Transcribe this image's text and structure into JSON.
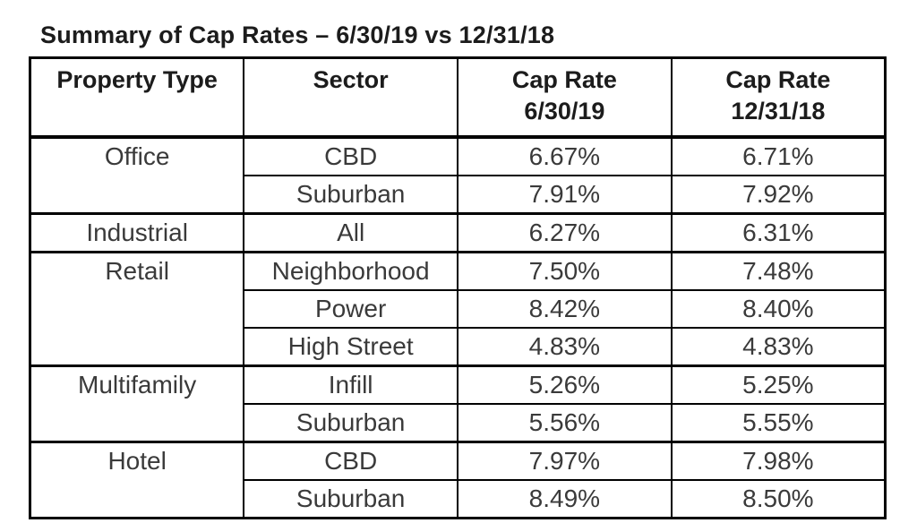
{
  "title": "Summary of Cap Rates – 6/30/19 vs 12/31/18",
  "table": {
    "headers": [
      {
        "line1": "Property Type",
        "line2": ""
      },
      {
        "line1": "Sector",
        "line2": ""
      },
      {
        "line1": "Cap Rate",
        "line2": "6/30/19"
      },
      {
        "line1": "Cap Rate",
        "line2": "12/31/18"
      }
    ],
    "groups": [
      {
        "property_type": "Office",
        "rows": [
          {
            "sector": "CBD",
            "rate_2019": "6.67%",
            "rate_2018": "6.71%"
          },
          {
            "sector": "Suburban",
            "rate_2019": "7.91%",
            "rate_2018": "7.92%"
          }
        ]
      },
      {
        "property_type": "Industrial",
        "rows": [
          {
            "sector": "All",
            "rate_2019": "6.27%",
            "rate_2018": "6.31%"
          }
        ]
      },
      {
        "property_type": "Retail",
        "rows": [
          {
            "sector": "Neighborhood",
            "rate_2019": "7.50%",
            "rate_2018": "7.48%"
          },
          {
            "sector": "Power",
            "rate_2019": "8.42%",
            "rate_2018": "8.40%"
          },
          {
            "sector": "High Street",
            "rate_2019": "4.83%",
            "rate_2018": "4.83%"
          }
        ]
      },
      {
        "property_type": "Multifamily",
        "rows": [
          {
            "sector": "Infill",
            "rate_2019": "5.26%",
            "rate_2018": "5.25%"
          },
          {
            "sector": "Suburban",
            "rate_2019": "5.56%",
            "rate_2018": "5.55%"
          }
        ]
      },
      {
        "property_type": "Hotel",
        "rows": [
          {
            "sector": "CBD",
            "rate_2019": "7.97%",
            "rate_2018": "7.98%"
          },
          {
            "sector": "Suburban",
            "rate_2019": "8.49%",
            "rate_2018": "8.50%"
          }
        ]
      }
    ]
  },
  "chart_data": {
    "type": "table",
    "title": "Summary of Cap Rates – 6/30/19 vs 12/31/18",
    "columns": [
      "Property Type",
      "Sector",
      "Cap Rate 6/30/19",
      "Cap Rate 12/31/18"
    ],
    "rows": [
      [
        "Office",
        "CBD",
        "6.67%",
        "6.71%"
      ],
      [
        "Office",
        "Suburban",
        "7.91%",
        "7.92%"
      ],
      [
        "Industrial",
        "All",
        "6.27%",
        "6.31%"
      ],
      [
        "Retail",
        "Neighborhood",
        "7.50%",
        "7.48%"
      ],
      [
        "Retail",
        "Power",
        "8.42%",
        "8.40%"
      ],
      [
        "Retail",
        "High Street",
        "4.83%",
        "4.83%"
      ],
      [
        "Multifamily",
        "Infill",
        "5.26%",
        "5.25%"
      ],
      [
        "Multifamily",
        "Suburban",
        "5.56%",
        "5.55%"
      ],
      [
        "Hotel",
        "CBD",
        "7.97%",
        "7.98%"
      ],
      [
        "Hotel",
        "Suburban",
        "8.49%",
        "8.50%"
      ]
    ]
  },
  "colors": {
    "border": "#000000",
    "header_text": "#1c1c1c",
    "body_text": "#3a3a3a",
    "background": "#ffffff"
  }
}
